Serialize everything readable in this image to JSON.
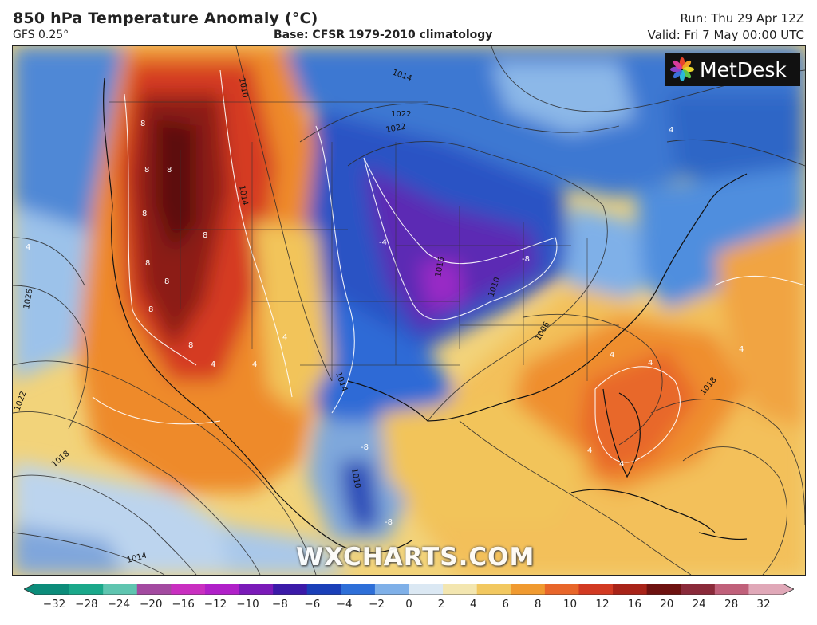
{
  "header": {
    "title": "850 hPa Temperature Anomaly (°C)",
    "model": "GFS 0.25°",
    "base": "Base: CFSR 1979-2010 climatology",
    "run": "Run: Thu 29 Apr 12Z",
    "valid": "Valid: Fri 7 May 00:00 UTC"
  },
  "logo": {
    "icon": "metdesk-flower-logo",
    "name": "MetDesk"
  },
  "watermark": "WXCHARTS.COM",
  "map": {
    "region": "North America",
    "isobar_labels": [
      "1022",
      "1022",
      "1010",
      "1014",
      "1026",
      "1022",
      "1018",
      "1014",
      "1016",
      "1010",
      "1006",
      "1018",
      "1014",
      "1010",
      "1014"
    ],
    "anomaly_labels": [
      "8",
      "8",
      "8",
      "8",
      "8",
      "8",
      "8",
      "8",
      "8",
      "4",
      "4",
      "4",
      "4",
      "-4",
      "-8",
      "-8",
      "-8",
      "4",
      "4",
      "4",
      "4",
      "4",
      "4"
    ]
  },
  "colorbar": {
    "ticks": [
      "−32",
      "−28",
      "−24",
      "−20",
      "−16",
      "−12",
      "−10",
      "−8",
      "−6",
      "−4",
      "−2",
      "0",
      "2",
      "4",
      "6",
      "8",
      "10",
      "12",
      "16",
      "20",
      "24",
      "28",
      "32"
    ],
    "colors": [
      "#0c8c7a",
      "#1aa88a",
      "#5fc5b0",
      "#a34aa0",
      "#c92fc0",
      "#b020c8",
      "#7a1ab8",
      "#3b1aa8",
      "#1a3fb8",
      "#2e6fd8",
      "#7fb0e8",
      "#dbe8f3",
      "#f3e6b0",
      "#f2c860",
      "#f09a30",
      "#e8662a",
      "#d23a22",
      "#a82318",
      "#6e1210",
      "#8a2a3a",
      "#c0607a",
      "#e0a8b8"
    ]
  }
}
